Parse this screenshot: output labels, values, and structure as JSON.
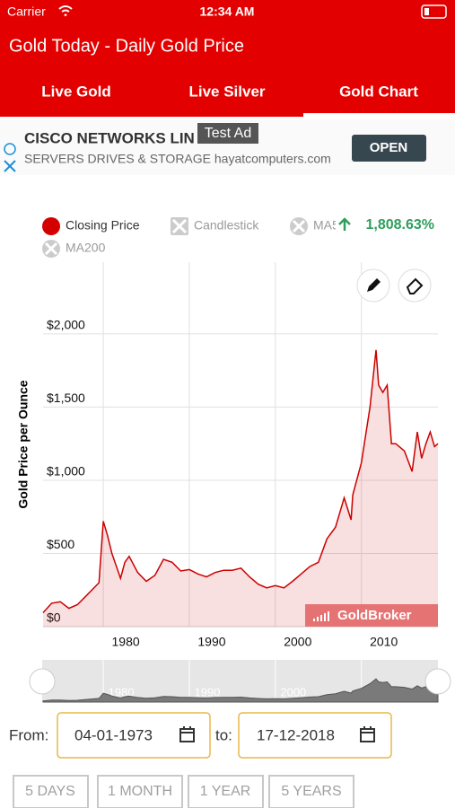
{
  "status_bar": {
    "carrier": "Carrier",
    "time": "12:34 AM"
  },
  "header": {
    "title": "Gold Today - Daily Gold Price",
    "tabs": [
      "Live Gold",
      "Live Silver",
      "Gold Chart"
    ]
  },
  "ad": {
    "headline": "CISCO NETWORKS LIN",
    "badge": "Test Ad",
    "subline": "SERVERS DRIVES & STORAGE hayatcomputers.com",
    "button": "OPEN"
  },
  "legend_toggles": [
    "Candlestick",
    "MA5",
    "MA200"
  ],
  "change": "1,808.63%",
  "watermark": "GoldBroker",
  "range": {
    "from_label": "From:",
    "from": "04-01-1973",
    "to_label": "to:",
    "to": "17-12-2018",
    "buttons": [
      "5 DAYS",
      "1 MONTH",
      "1 YEAR",
      "5 YEARS"
    ]
  },
  "chart_data": {
    "type": "line",
    "ylabel": "Gold Price per Ounce",
    "grid": true,
    "x": [
      1973,
      1974,
      1975,
      1976,
      1977,
      1978,
      1979.5,
      1980,
      1980.5,
      1981,
      1982,
      1982.5,
      1983,
      1984,
      1985,
      1986,
      1987,
      1988,
      1989,
      1990,
      1991,
      1992,
      1993,
      1994,
      1995,
      1996,
      1997,
      1998,
      1999,
      2000,
      2001,
      2002,
      2003,
      2004,
      2005,
      2006,
      2007,
      2008,
      2008.8,
      2009,
      2010,
      2011,
      2011.7,
      2012,
      2012.5,
      2013,
      2013.5,
      2014,
      2015,
      2015.9,
      2016.5,
      2017,
      2017.5,
      2018,
      2018.5,
      2018.9
    ],
    "series": [
      {
        "name": "Closing Price",
        "color": "#cc0000",
        "values": [
          95,
          160,
          170,
          125,
          150,
          210,
          300,
          720,
          620,
          500,
          330,
          440,
          480,
          370,
          310,
          350,
          460,
          440,
          380,
          390,
          360,
          340,
          370,
          385,
          385,
          400,
          340,
          290,
          265,
          280,
          265,
          310,
          360,
          410,
          440,
          600,
          680,
          880,
          730,
          900,
          1120,
          1500,
          1890,
          1650,
          1600,
          1650,
          1250,
          1250,
          1200,
          1060,
          1330,
          1150,
          1250,
          1330,
          1230,
          1250
        ]
      }
    ],
    "xlim": [
      1973,
      2018.9
    ],
    "ylim": [
      0,
      2490
    ],
    "xticks": [
      1980,
      1990,
      2000,
      2010
    ],
    "yticks": [
      {
        "value": 0,
        "label": "$0"
      },
      {
        "value": 500,
        "label": "$500"
      },
      {
        "value": 1000,
        "label": "$1,000"
      },
      {
        "value": 1500,
        "label": "$1,500"
      },
      {
        "value": 2000,
        "label": "$2,000"
      }
    ]
  }
}
